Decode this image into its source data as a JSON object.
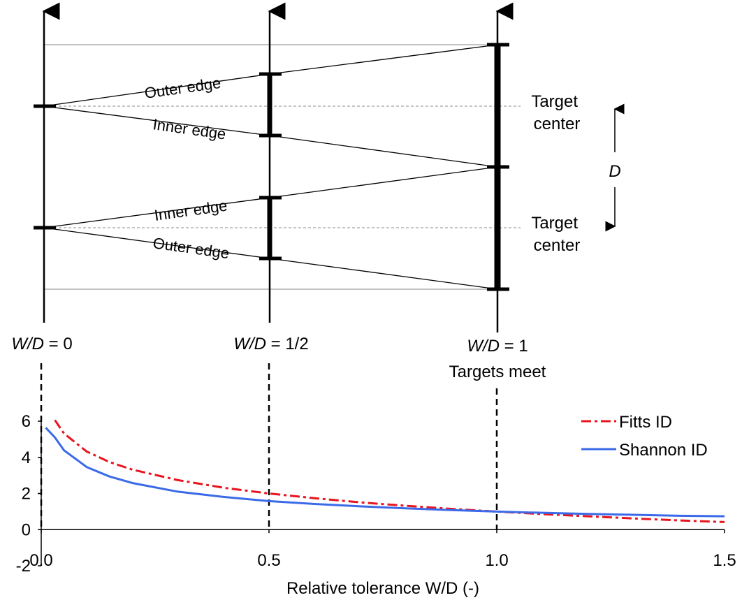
{
  "diagram": {
    "axis_labels": [
      {
        "wd": "W/D",
        "eq": " = 0"
      },
      {
        "wd": "W/D",
        "eq": " = 1/2"
      },
      {
        "wd": "W/D",
        "eq": " = 1"
      }
    ],
    "targets_meet": "Targets meet",
    "edge_labels": {
      "outer_top": "Outer edge",
      "inner_top": "Inner edge",
      "inner_bottom": "Inner edge",
      "outer_bottom": "Outer edge"
    },
    "target_label": [
      "Target",
      "center"
    ],
    "distance_label": "D"
  },
  "chart_data": {
    "type": "line",
    "xlabel": "Relative tolerance W/D   (-)",
    "ylabel": "",
    "xlim": [
      0,
      1.5
    ],
    "ylim": [
      -2,
      6
    ],
    "xticks": [
      "0.0",
      "0.5",
      "1.0",
      "1.5"
    ],
    "yticks": [
      "-2",
      "0",
      "2",
      "4",
      "6"
    ],
    "grid": false,
    "legend_position": "top-right",
    "reference_lines_x": [
      0,
      0.5,
      1.0
    ],
    "series": [
      {
        "name": "Fitts ID",
        "color": "#e8141e",
        "style": "dash-dot",
        "x": [
          0.03,
          0.05,
          0.1,
          0.15,
          0.2,
          0.3,
          0.4,
          0.5,
          0.6,
          0.7,
          0.8,
          0.9,
          1.0,
          1.1,
          1.2,
          1.3,
          1.4,
          1.5
        ],
        "y": [
          6.06,
          5.32,
          4.32,
          3.74,
          3.32,
          2.74,
          2.32,
          2.0,
          1.74,
          1.51,
          1.32,
          1.15,
          1.0,
          0.86,
          0.74,
          0.62,
          0.51,
          0.42
        ]
      },
      {
        "name": "Shannon ID",
        "color": "#3a6ae8",
        "style": "solid",
        "x": [
          0.01,
          0.03,
          0.05,
          0.1,
          0.15,
          0.2,
          0.3,
          0.4,
          0.5,
          0.6,
          0.7,
          0.8,
          0.9,
          1.0,
          1.1,
          1.2,
          1.3,
          1.4,
          1.5
        ],
        "y": [
          5.64,
          5.1,
          4.39,
          3.46,
          2.94,
          2.58,
          2.1,
          1.81,
          1.58,
          1.42,
          1.29,
          1.18,
          1.08,
          1.0,
          0.93,
          0.87,
          0.82,
          0.77,
          0.74
        ]
      }
    ]
  }
}
